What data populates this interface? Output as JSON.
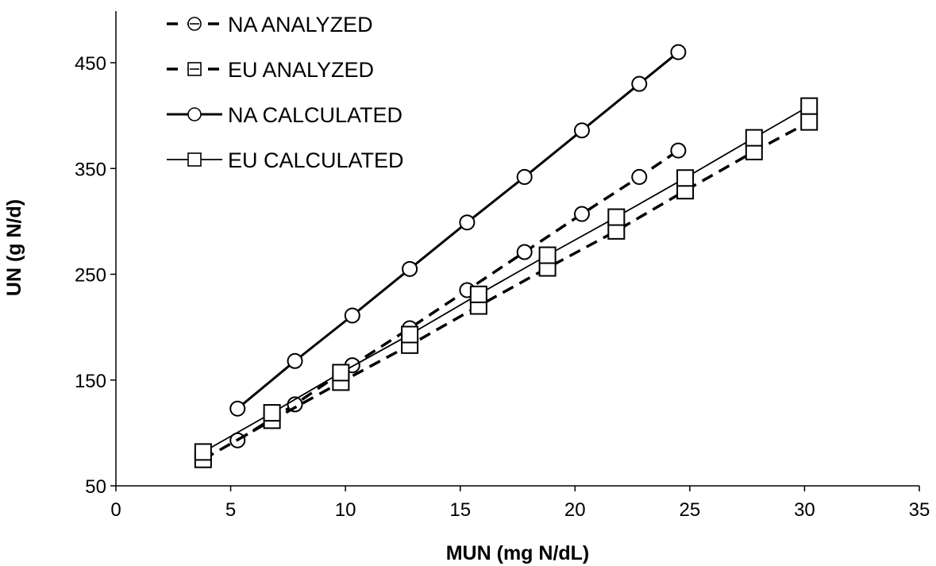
{
  "chart_data": {
    "type": "line",
    "title": "",
    "xlabel": "MUN (mg N/dL)",
    "ylabel": "UN (g N/d)",
    "xlim": [
      0,
      35
    ],
    "ylim": [
      50,
      500
    ],
    "xticks": [
      0,
      5,
      10,
      15,
      20,
      25,
      30,
      35
    ],
    "yticks": [
      50,
      150,
      250,
      350,
      450
    ],
    "grid": false,
    "legend_position": "top-left",
    "series": [
      {
        "name": "NA ANALYZED",
        "line": "dashed",
        "marker": "circle",
        "x": [
          5.3,
          7.8,
          10.3,
          12.8,
          15.3,
          17.8,
          20.3,
          22.8,
          24.5
        ],
        "y": [
          93,
          127,
          164,
          199,
          235,
          271,
          307,
          342,
          367
        ]
      },
      {
        "name": "EU ANALYZED",
        "line": "dashed",
        "marker": "square",
        "x": [
          3.8,
          6.8,
          9.8,
          12.8,
          15.8,
          18.8,
          21.8,
          24.8,
          27.8,
          30.2
        ],
        "y": [
          75,
          112,
          148,
          183,
          220,
          256,
          291,
          329,
          366,
          394
        ]
      },
      {
        "name": "NA CALCULATED",
        "line": "solid-bold",
        "marker": "circle",
        "x": [
          5.3,
          7.8,
          10.3,
          12.8,
          15.3,
          17.8,
          20.3,
          22.8,
          24.5
        ],
        "y": [
          123,
          168,
          211,
          255,
          299,
          342,
          386,
          430,
          460
        ]
      },
      {
        "name": "EU CALCULATED",
        "line": "solid-thin",
        "marker": "square",
        "x": [
          3.8,
          6.8,
          9.8,
          12.8,
          15.8,
          18.8,
          21.8,
          24.8,
          27.8,
          30.2
        ],
        "y": [
          82,
          119,
          157,
          193,
          231,
          268,
          304,
          341,
          379,
          409
        ]
      }
    ]
  }
}
